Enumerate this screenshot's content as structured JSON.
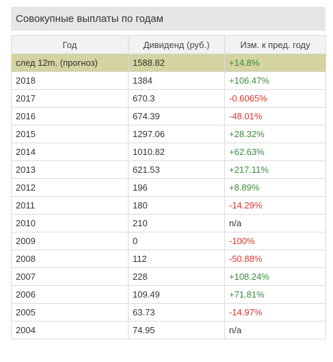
{
  "panel": {
    "title": "Совокупные выплаты по годам"
  },
  "table": {
    "headers": [
      "Год",
      "Дивиденд (руб.)",
      "Изм. к пред. году"
    ],
    "rows": [
      {
        "year": "след 12m. (прогноз)",
        "dividend": "1588.82",
        "change": "+14.8%",
        "trend": "pos",
        "highlight": true
      },
      {
        "year": "2018",
        "dividend": "1384",
        "change": "+106.47%",
        "trend": "pos"
      },
      {
        "year": "2017",
        "dividend": "670.3",
        "change": "-0.6065%",
        "trend": "neg"
      },
      {
        "year": "2016",
        "dividend": "674.39",
        "change": "-48.01%",
        "trend": "neg"
      },
      {
        "year": "2015",
        "dividend": "1297.06",
        "change": "+28.32%",
        "trend": "pos"
      },
      {
        "year": "2014",
        "dividend": "1010.82",
        "change": "+62.63%",
        "trend": "pos"
      },
      {
        "year": "2013",
        "dividend": "621.53",
        "change": "+217.11%",
        "trend": "pos"
      },
      {
        "year": "2012",
        "dividend": "196",
        "change": "+8.89%",
        "trend": "pos"
      },
      {
        "year": "2011",
        "dividend": "180",
        "change": "-14.29%",
        "trend": "neg"
      },
      {
        "year": "2010",
        "dividend": "210",
        "change": "n/a",
        "trend": "na"
      },
      {
        "year": "2009",
        "dividend": "0",
        "change": "-100%",
        "trend": "neg"
      },
      {
        "year": "2008",
        "dividend": "112",
        "change": "-50.88%",
        "trend": "neg"
      },
      {
        "year": "2007",
        "dividend": "228",
        "change": "+108.24%",
        "trend": "pos"
      },
      {
        "year": "2006",
        "dividend": "109.49",
        "change": "+71.81%",
        "trend": "pos"
      },
      {
        "year": "2005",
        "dividend": "63.73",
        "change": "-14.97%",
        "trend": "neg"
      },
      {
        "year": "2004",
        "dividend": "74.95",
        "change": "n/a",
        "trend": "na"
      }
    ]
  },
  "colors": {
    "positive": "#3a8a3a",
    "negative": "#d9342b",
    "highlight_row": "#d4d3a1",
    "title_bar": "#e6e6e6"
  }
}
